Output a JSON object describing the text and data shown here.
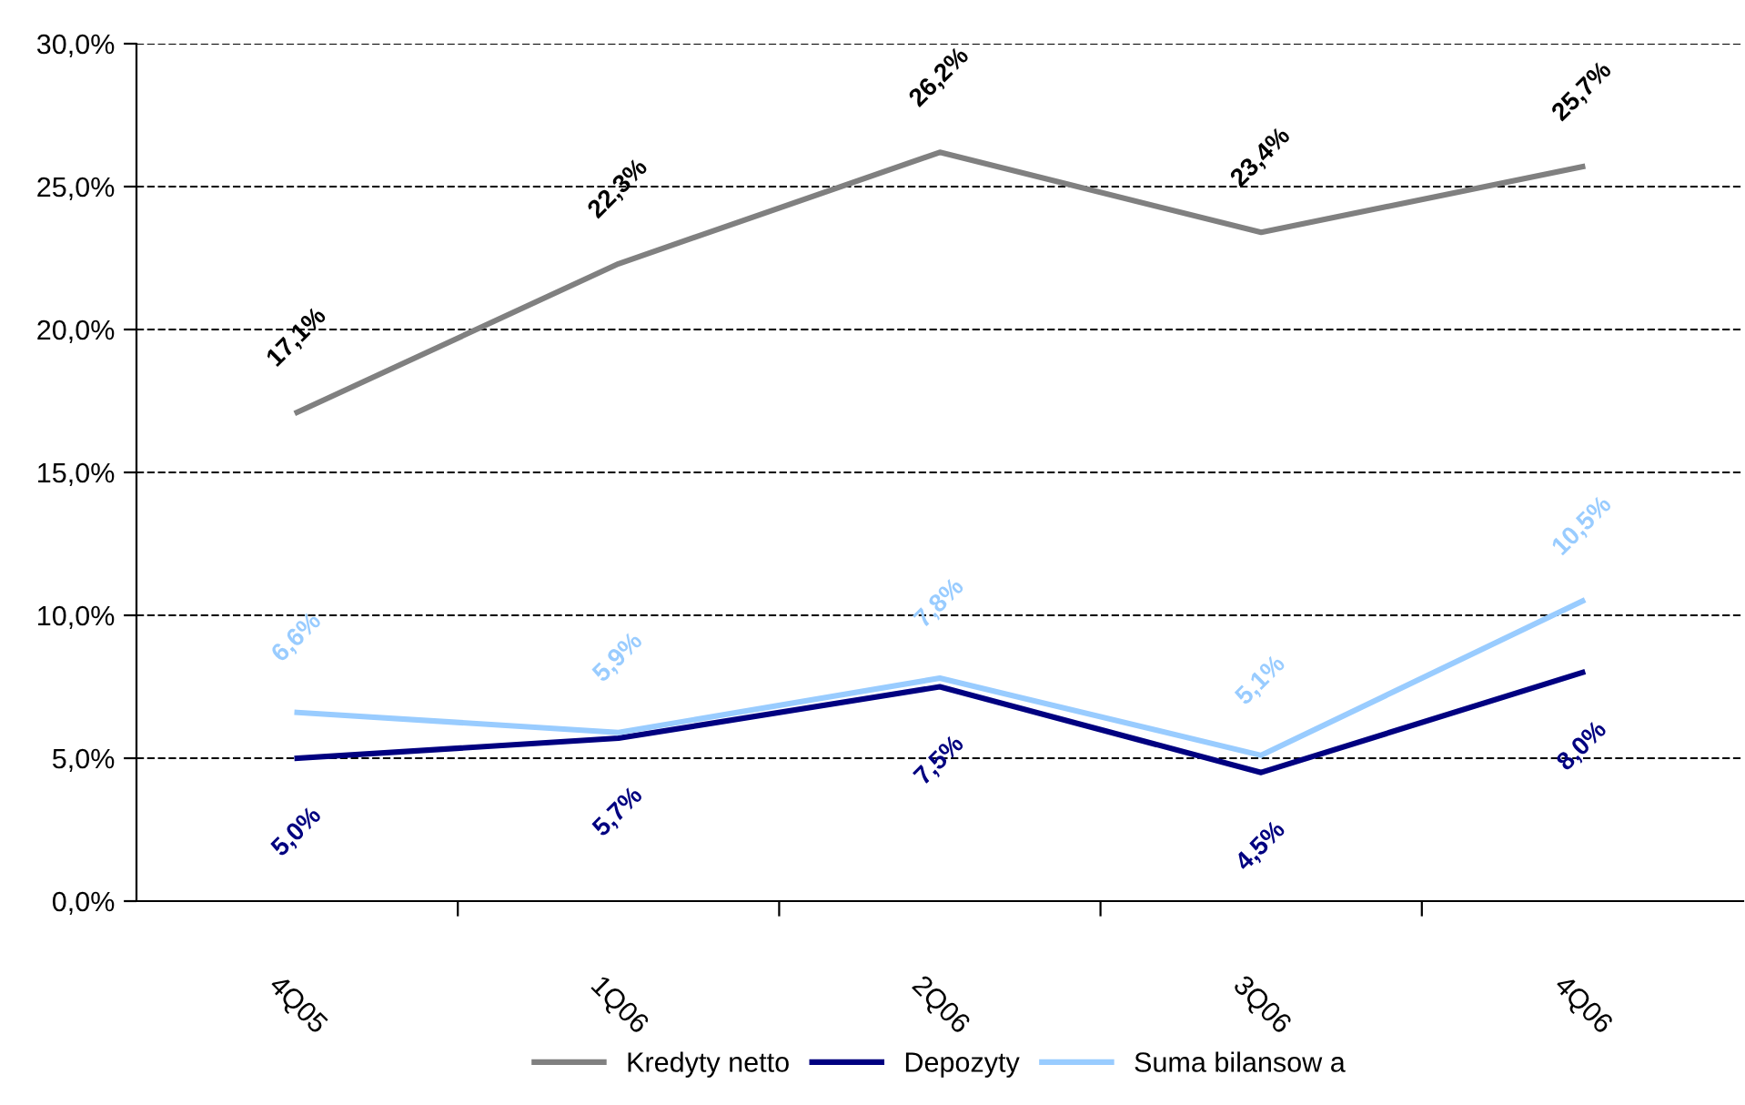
{
  "chart_data": {
    "type": "line",
    "categories": [
      "4Q05",
      "1Q06",
      "2Q06",
      "3Q06",
      "4Q06"
    ],
    "series": [
      {
        "name": "Kredyty netto",
        "color": "#808080",
        "values": [
          17.1,
          22.3,
          26.2,
          23.4,
          25.7
        ],
        "value_labels": [
          "17,1%",
          "22,3%",
          "26,2%",
          "23,4%",
          "25,7%"
        ]
      },
      {
        "name": "Depozyty",
        "color": "#000080",
        "values": [
          5.0,
          5.7,
          7.5,
          4.5,
          8.0
        ],
        "value_labels": [
          "5,0%",
          "5,7%",
          "7,5%",
          "4,5%",
          "8,0%"
        ]
      },
      {
        "name": "Suma bilansow a",
        "color": "#99ccff",
        "values": [
          6.6,
          5.9,
          7.8,
          5.1,
          10.5
        ],
        "value_labels": [
          "6,6%",
          "5,9%",
          "7,8%",
          "5,1%",
          "10,5%"
        ]
      }
    ],
    "ylim": [
      0,
      30
    ],
    "yticks": [
      {
        "value": 0,
        "label": "0,0%"
      },
      {
        "value": 5,
        "label": "5,0%"
      },
      {
        "value": 10,
        "label": "10,0%"
      },
      {
        "value": 15,
        "label": "15,0%"
      },
      {
        "value": 20,
        "label": "20,0%"
      },
      {
        "value": 25,
        "label": "25,0%"
      },
      {
        "value": 30,
        "label": "30,0%"
      }
    ],
    "grid": "y",
    "legend": "bottom",
    "marker": "none",
    "line_style": "solid"
  }
}
